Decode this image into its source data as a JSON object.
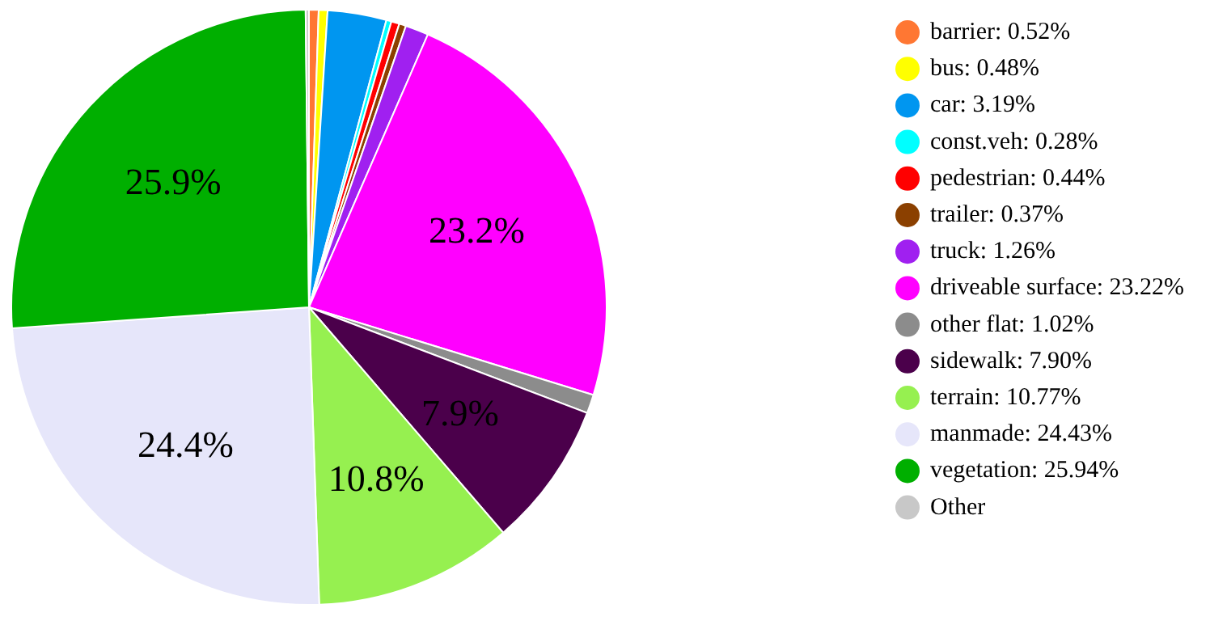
{
  "chart_data": {
    "type": "pie",
    "categories": [
      "barrier: 0.52%",
      "bus: 0.48%",
      "car: 3.19%",
      "const.veh: 0.28%",
      "pedestrian: 0.44%",
      "trailer: 0.37%",
      "truck: 1.26%",
      "driveable surface: 23.22%",
      "other flat: 1.02%",
      "sidewalk: 7.90%",
      "terrain: 10.77%",
      "manmade: 24.43%",
      "vegetation: 25.94%",
      "Other"
    ],
    "values": [
      0.52,
      0.48,
      3.19,
      0.28,
      0.44,
      0.37,
      1.26,
      23.22,
      1.02,
      7.9,
      10.77,
      24.43,
      25.94,
      0.18
    ],
    "colors": [
      "#ff7733",
      "#ffff00",
      "#0096f0",
      "#00ffff",
      "#ff0000",
      "#8b4000",
      "#a020f0",
      "#ff00ff",
      "#8c8c8c",
      "#4b004b",
      "#96f050",
      "#e6e6fa",
      "#00af00",
      "#c8c8c8"
    ],
    "value_labels": [
      null,
      null,
      null,
      null,
      null,
      null,
      null,
      "23.2%",
      null,
      "7.9%",
      "10.8%",
      "24.4%",
      "25.9%",
      null
    ],
    "legend": "right"
  }
}
